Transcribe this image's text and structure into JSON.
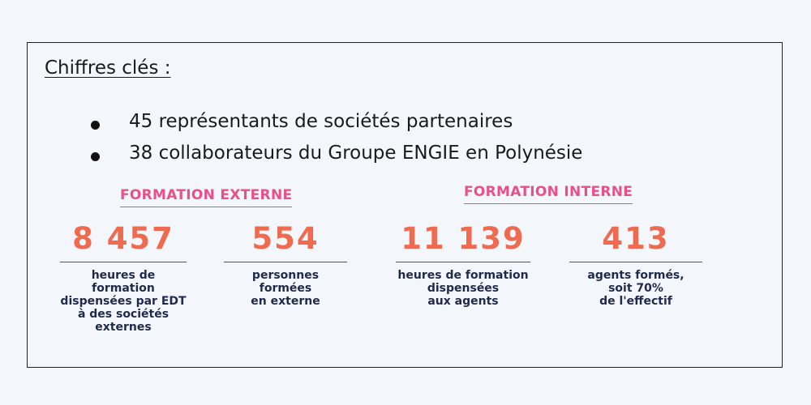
{
  "title": "Chiffres clés :",
  "bullets": [
    "45 représentants de sociétés partenaires",
    "38 collaborateurs du Groupe ENGIE en Polynésie"
  ],
  "colors": {
    "heading_pink": "#e8508a",
    "number_orange": "#ef6a4e",
    "desc_navy": "#1f2a4c"
  },
  "external": {
    "heading": "FORMATION EXTERNE",
    "stats": [
      {
        "value": "8 457",
        "desc": "heures de formation\ndispensées par EDT\nà des sociétés\nexternes"
      },
      {
        "value": "554",
        "desc": "personnes\nformées\nen externe"
      }
    ]
  },
  "internal": {
    "heading": "FORMATION INTERNE",
    "stats": [
      {
        "value": "11 139",
        "desc": "heures de formation\ndispensées\naux agents"
      },
      {
        "value": "413",
        "desc": "agents formés,\nsoit 70%\nde l'effectif"
      }
    ]
  }
}
